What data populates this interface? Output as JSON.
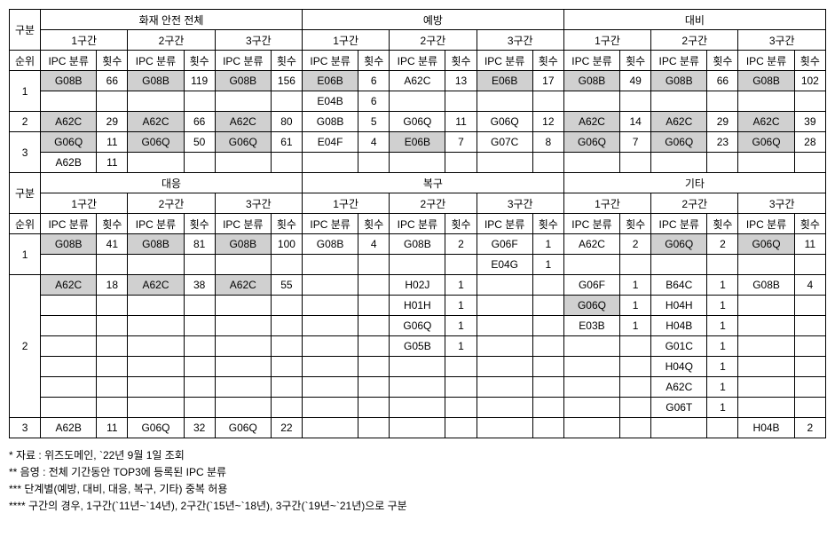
{
  "labels": {
    "gubun": "구분",
    "rank": "순위",
    "ipc": "IPC 분류",
    "count": "횟수",
    "seg1": "1구간",
    "seg2": "2구간",
    "seg3": "3구간"
  },
  "sections": {
    "top": [
      "화재 안전 전체",
      "예방",
      "대비"
    ],
    "bottom": [
      "대응",
      "복구",
      "기타"
    ]
  },
  "top": {
    "r1a": {
      "c": [
        "G08B",
        "66",
        "G08B",
        "119",
        "G08B",
        "156",
        "E06B",
        "6",
        "A62C",
        "13",
        "E06B",
        "17",
        "G08B",
        "49",
        "G08B",
        "66",
        "G08B",
        "102"
      ],
      "sh": [
        0,
        2,
        4,
        6,
        10,
        12,
        14,
        16
      ]
    },
    "r1b": {
      "c": [
        "",
        "",
        "",
        "",
        "",
        "",
        "E04B",
        "6",
        "",
        "",
        "",
        "",
        "",
        "",
        "",
        "",
        "",
        ""
      ],
      "sh": []
    },
    "r2": {
      "c": [
        "A62C",
        "29",
        "A62C",
        "66",
        "A62C",
        "80",
        "G08B",
        "5",
        "G06Q",
        "11",
        "G06Q",
        "12",
        "A62C",
        "14",
        "A62C",
        "29",
        "A62C",
        "39"
      ],
      "sh": [
        0,
        2,
        4,
        12,
        14,
        16
      ]
    },
    "r3a": {
      "c": [
        "G06Q",
        "11",
        "G06Q",
        "50",
        "G06Q",
        "61",
        "E04F",
        "4",
        "E06B",
        "7",
        "G07C",
        "8",
        "G06Q",
        "7",
        "G06Q",
        "23",
        "G06Q",
        "28"
      ],
      "sh": [
        0,
        2,
        4,
        8,
        12,
        14,
        16
      ]
    },
    "r3b": {
      "c": [
        "A62B",
        "11",
        "",
        "",
        "",
        "",
        "",
        "",
        "",
        "",
        "",
        "",
        "",
        "",
        "",
        "",
        "",
        ""
      ],
      "sh": []
    }
  },
  "bottom": {
    "r1a": {
      "c": [
        "G08B",
        "41",
        "G08B",
        "81",
        "G08B",
        "100",
        "G08B",
        "4",
        "G08B",
        "2",
        "G06F",
        "1",
        "A62C",
        "2",
        "G06Q",
        "2",
        "G06Q",
        "11"
      ],
      "sh": [
        0,
        2,
        4,
        14,
        16
      ]
    },
    "r1b": {
      "c": [
        "",
        "",
        "",
        "",
        "",
        "",
        "",
        "",
        "",
        "",
        "E04G",
        "1",
        "",
        "",
        "",
        "",
        "",
        ""
      ],
      "sh": []
    },
    "r2a": {
      "c": [
        "A62C",
        "18",
        "A62C",
        "38",
        "A62C",
        "55",
        "",
        "",
        "H02J",
        "1",
        "",
        "",
        "G06F",
        "1",
        "B64C",
        "1",
        "G08B",
        "4"
      ],
      "sh": [
        0,
        2,
        4
      ]
    },
    "r2b": {
      "c": [
        "",
        "",
        "",
        "",
        "",
        "",
        "",
        "",
        "H01H",
        "1",
        "",
        "",
        "G06Q",
        "1",
        "H04H",
        "1",
        "",
        ""
      ],
      "sh": [
        12
      ]
    },
    "r2c": {
      "c": [
        "",
        "",
        "",
        "",
        "",
        "",
        "",
        "",
        "G06Q",
        "1",
        "",
        "",
        "E03B",
        "1",
        "H04B",
        "1",
        "",
        ""
      ],
      "sh": []
    },
    "r2d": {
      "c": [
        "",
        "",
        "",
        "",
        "",
        "",
        "",
        "",
        "G05B",
        "1",
        "",
        "",
        "",
        "",
        "G01C",
        "1",
        "",
        ""
      ],
      "sh": []
    },
    "r2e": {
      "c": [
        "",
        "",
        "",
        "",
        "",
        "",
        "",
        "",
        "",
        "",
        "",
        "",
        "",
        "",
        "H04Q",
        "1",
        "",
        ""
      ],
      "sh": []
    },
    "r2f": {
      "c": [
        "",
        "",
        "",
        "",
        "",
        "",
        "",
        "",
        "",
        "",
        "",
        "",
        "",
        "",
        "A62C",
        "1",
        "",
        ""
      ],
      "sh": []
    },
    "r2g": {
      "c": [
        "",
        "",
        "",
        "",
        "",
        "",
        "",
        "",
        "",
        "",
        "",
        "",
        "",
        "",
        "G06T",
        "1",
        "",
        ""
      ],
      "sh": []
    },
    "r3": {
      "c": [
        "A62B",
        "11",
        "G06Q",
        "32",
        "G06Q",
        "22",
        "",
        "",
        "",
        "",
        "",
        "",
        "",
        "",
        "",
        "",
        "H04B",
        "2"
      ],
      "sh": []
    }
  },
  "notes": [
    "* 자료 : 위즈도메인, `22년 9월 1일 조회",
    "** 음영 : 전체 기간동안 TOP3에 등록된 IPC 분류",
    "*** 단계별(예방, 대비, 대응, 복구, 기타) 중복 허용",
    "**** 구간의 경우, 1구간(`11년~`14년), 2구간(`15년~`18년), 3구간(`19년~`21년)으로 구분"
  ]
}
